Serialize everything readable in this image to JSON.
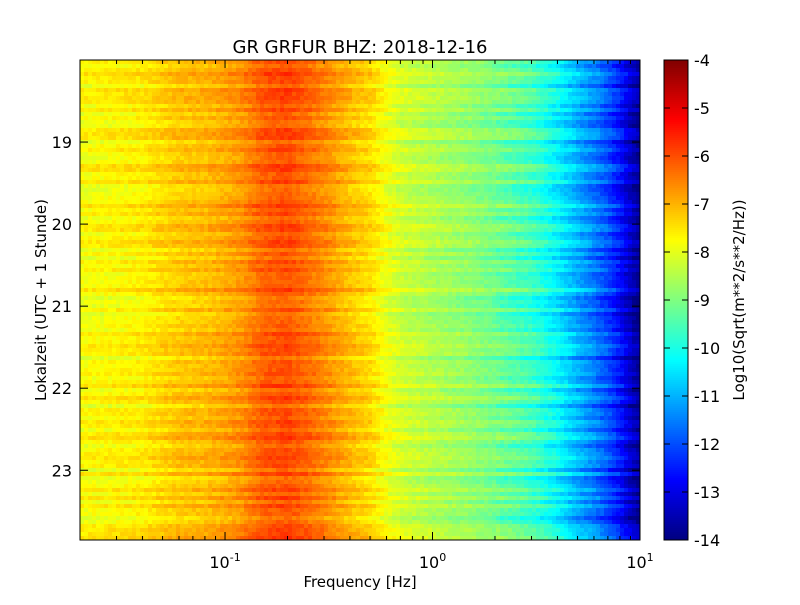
{
  "chart_data": {
    "type": "heatmap",
    "title": "GR GRFUR BHZ: 2018-12-16",
    "xlabel": "Frequency [Hz]",
    "ylabel": "Lokalzeit (UTC + 1 Stunde)",
    "colorbar_label": "Log10(Sqrt(m**2/s**2/Hz))",
    "x_scale": "log",
    "xlim": [
      0.02,
      10
    ],
    "x_ticks": [
      {
        "value": 0.1,
        "base": "10",
        "exp": "-1"
      },
      {
        "value": 1,
        "base": "10",
        "exp": "0"
      },
      {
        "value": 10,
        "base": "10",
        "exp": "1"
      }
    ],
    "ylim": [
      18.0,
      23.85
    ],
    "y_ticks": [
      "19",
      "20",
      "21",
      "22",
      "23"
    ],
    "y_inverted": true,
    "colorbar_range": [
      -14,
      -4
    ],
    "colorbar_ticks": [
      "-4",
      "-5",
      "-6",
      "-7",
      "-8",
      "-9",
      "-10",
      "-11",
      "-12",
      "-13",
      "-14"
    ],
    "colormap": "jet",
    "profile": {
      "frequency_hz": [
        0.02,
        0.04,
        0.06,
        0.08,
        0.1,
        0.12,
        0.15,
        0.2,
        0.25,
        0.3,
        0.4,
        0.5,
        0.6,
        0.7,
        1.0,
        1.5,
        2.0,
        3.0,
        4.0,
        5.0,
        6.0,
        7.0,
        8.0,
        9.0,
        10.0
      ],
      "log10_amplitude": [
        -7.8,
        -7.6,
        -7.2,
        -7.1,
        -6.9,
        -6.7,
        -6.2,
        -6.0,
        -6.3,
        -6.6,
        -7.1,
        -7.4,
        -7.9,
        -8.2,
        -8.5,
        -8.8,
        -9.1,
        -9.6,
        -10.3,
        -11.0,
        -11.5,
        -12.0,
        -12.6,
        -13.3,
        -13.8
      ]
    },
    "grid": false
  }
}
